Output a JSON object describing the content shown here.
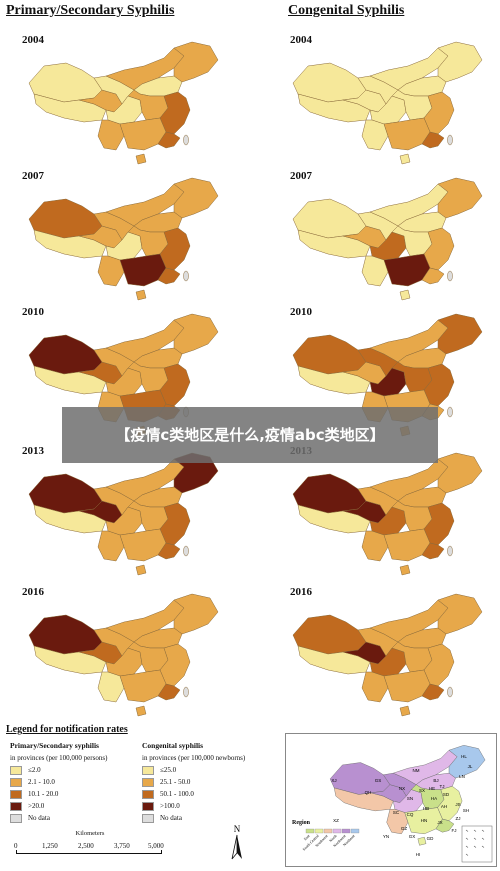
{
  "titles": {
    "left": "Primary/Secondary Syphilis",
    "right": "Congenital Syphilis"
  },
  "years": [
    "2004",
    "2007",
    "2010",
    "2013",
    "2016"
  ],
  "colors": {
    "c1": "#f6e89a",
    "c2": "#e7a84a",
    "c3": "#c06a1f",
    "c4": "#6a1a0e",
    "nodata": "#dddddd"
  },
  "map_levels": {
    "primary": [
      "low",
      "low-mid",
      "mid",
      "high",
      "high"
    ],
    "congenital": [
      "low",
      "low-mid",
      "mid-high",
      "high",
      "high"
    ]
  },
  "banner": "【疫情c类地区是什么,疫情abc类地区】",
  "legend": {
    "title": "Legend for notification rates",
    "primary": {
      "heading": "Primary/Secondary syphilis",
      "unit": "in provinces (per 100,000 persons)",
      "items": [
        "≤2.0",
        "2.1 - 10.0",
        "10.1 - 20.0",
        ">20.0",
        "No data"
      ]
    },
    "congenital": {
      "heading": "Congenital syphilis",
      "unit": "in provinces (per 100,000 newborns)",
      "items": [
        "≤25.0",
        "25.1 - 50.0",
        "50.1 - 100.0",
        ">100.0",
        "No data"
      ]
    }
  },
  "scale": {
    "unit": "Kilometers",
    "ticks": [
      "0",
      "1,250",
      "2,500",
      "3,750",
      "5,000"
    ]
  },
  "north_label": "N",
  "region_map": {
    "legend_title": "Region",
    "legend_items": [
      "East",
      "South Central",
      "Southwest",
      "North",
      "Northwest",
      "Northeast"
    ],
    "legend_colors": [
      "#c9e08a",
      "#e8f0a0",
      "#f3c7a8",
      "#e0b8e8",
      "#b890d0",
      "#a8c8ec"
    ],
    "provinces": [
      "XJ",
      "XZ",
      "QH",
      "GS",
      "NM",
      "HL",
      "JL",
      "LN",
      "BJ",
      "TJ",
      "HE",
      "SX",
      "SN",
      "NX",
      "SD",
      "HA",
      "JS",
      "AH",
      "SH",
      "HB",
      "ZJ",
      "SC",
      "CQ",
      "HN",
      "JX",
      "FJ",
      "GZ",
      "YN",
      "GX",
      "GD",
      "HI"
    ]
  }
}
